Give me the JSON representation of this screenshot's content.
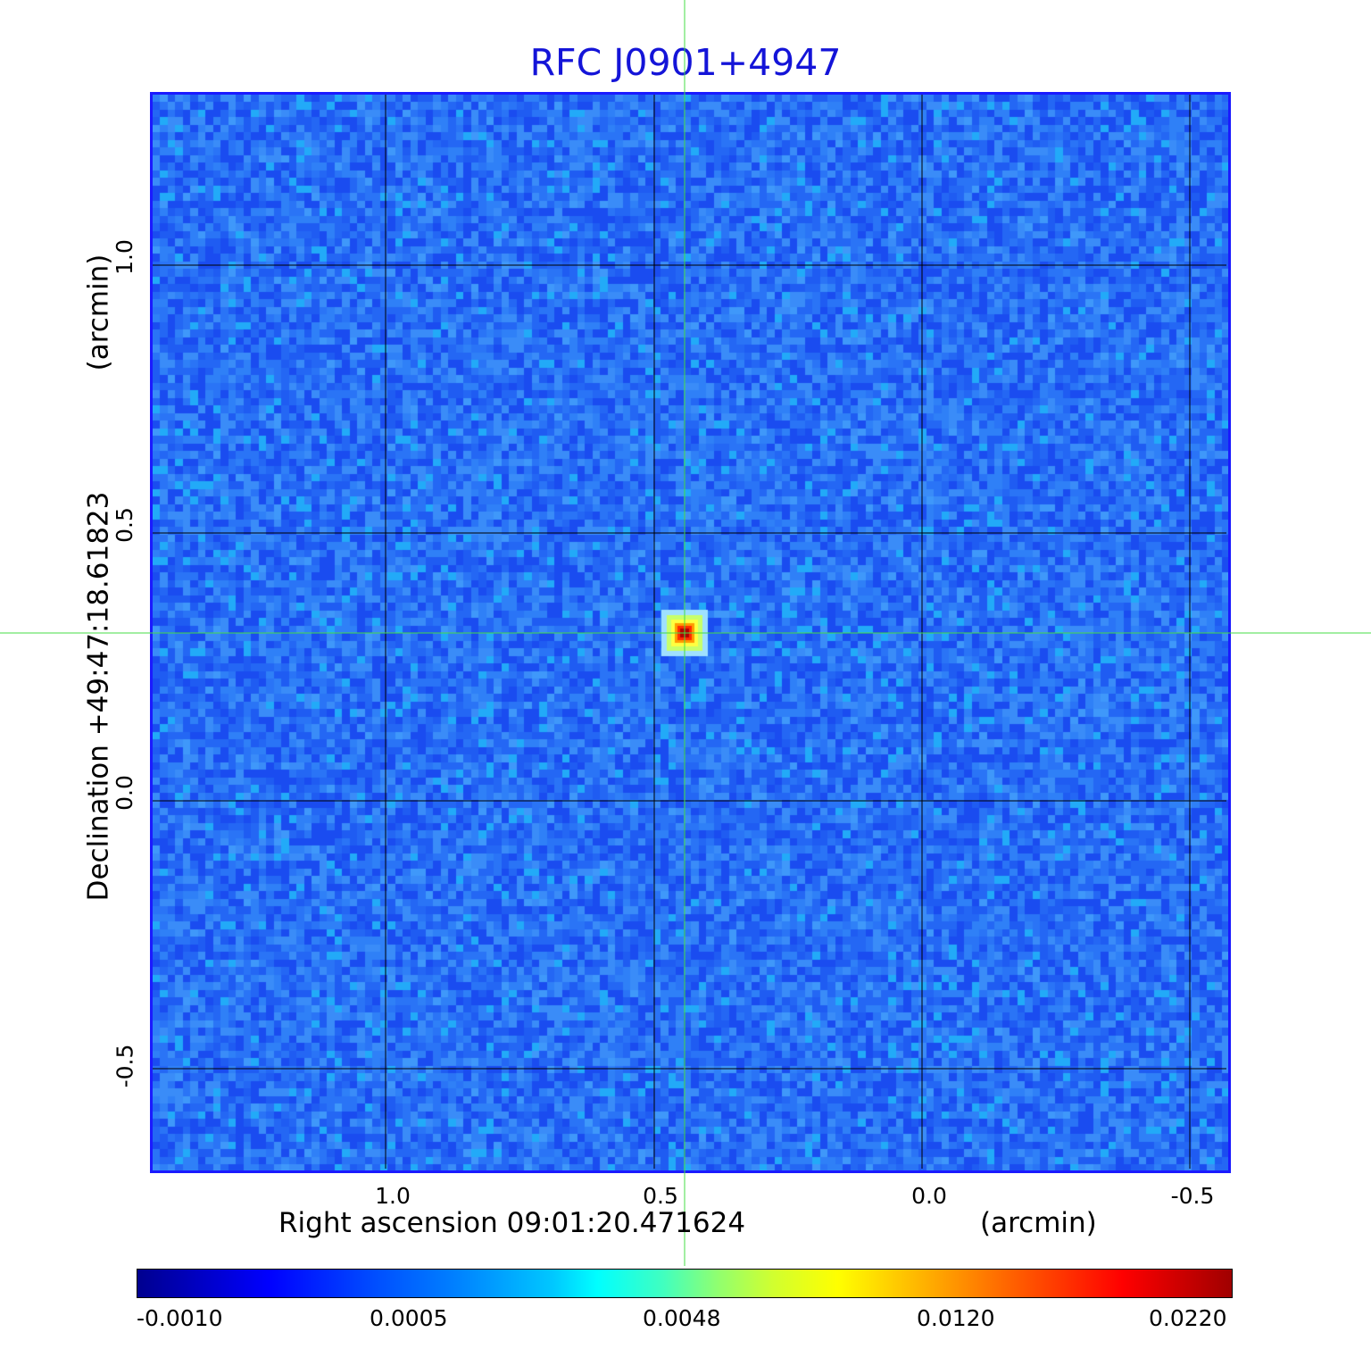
{
  "figure": {
    "title": "RFC J0901+4947",
    "x_axis": {
      "label": "Right ascension  09:01:20.471624",
      "unit": "(arcmin)",
      "ticks": [
        "1.0",
        "0.5",
        "0.0",
        "-0.5"
      ]
    },
    "y_axis": {
      "label": "Declination  +49:47:18.61823",
      "unit": "(arcmin)",
      "ticks": [
        "1.0",
        "0.5",
        "0.0",
        "-0.5"
      ]
    },
    "colorbar": {
      "ticks": [
        "-0.0010",
        "0.0005",
        "0.0048",
        "0.0120",
        "0.0220"
      ],
      "colormap": "jet"
    },
    "source": {
      "ra_offset_arcmin": 0.45,
      "dec_offset_arcmin": 0.31
    },
    "colors": {
      "title": "#1414d8",
      "frame": "#1a1aff",
      "crosshair": "#44dd44",
      "grid": "#000000"
    }
  }
}
